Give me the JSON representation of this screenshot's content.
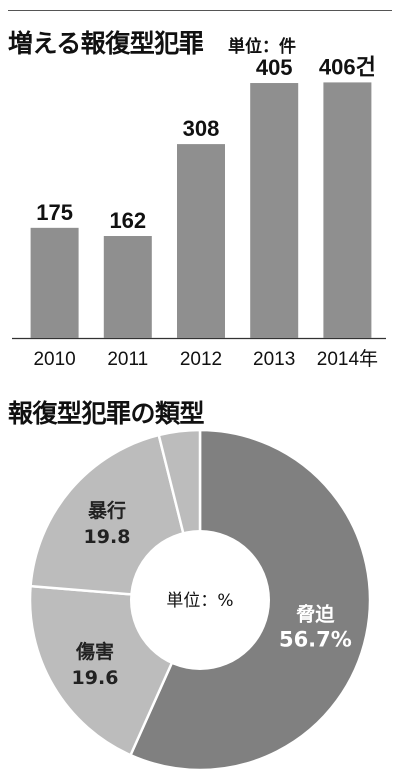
{
  "titles": {
    "bar_title": "増える報復型犯罪",
    "bar_unit": "単位：件",
    "pie_title": "報復型犯罪の類型"
  },
  "colors": {
    "bar": "#8f8f8f",
    "pie_main": "#808080",
    "pie_light": "#bcbcbc"
  },
  "chart_data": [
    {
      "type": "bar",
      "title": "増える報復型犯罪",
      "unit": "単位：件",
      "categories": [
        "2010",
        "2011",
        "2012",
        "2013",
        "2014年"
      ],
      "values": [
        175,
        162,
        308,
        405,
        406
      ],
      "value_labels": [
        "175",
        "162",
        "308",
        "405",
        "406건"
      ],
      "ylim": [
        0,
        440
      ],
      "grid": false
    },
    {
      "type": "pie",
      "title": "報復型犯罪の類型",
      "center_label": "単位：%",
      "slices": [
        {
          "label": "脅迫",
          "value": 56.7,
          "value_label": "56.7%"
        },
        {
          "label": "傷害",
          "value": 19.6,
          "value_label": "19.6"
        },
        {
          "label": "暴行",
          "value": 19.8,
          "value_label": "19.8"
        },
        {
          "label": "",
          "value": 3.9,
          "value_label": ""
        }
      ]
    }
  ]
}
